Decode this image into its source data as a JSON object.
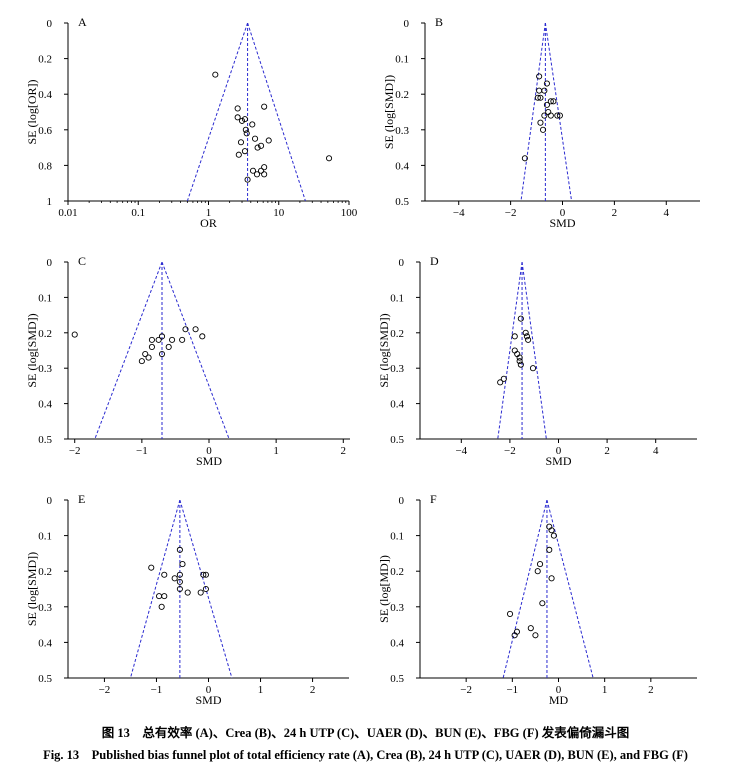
{
  "caption": {
    "cn": "图 13　总有效率 (A)、Crea (B)、24 h UTP (C)、UAER (D)、BUN (E)、FBG (F) 发表偏倚漏斗图",
    "en": "Fig. 13　Published bias funnel plot of total efficiency rate (A), Crea (B), 24 h UTP (C), UAER (D), BUN (E), and FBG (F)"
  },
  "colors": {
    "funnel": "#2a2ad0",
    "axis": "#000000",
    "points": "#000000"
  },
  "chart_data": [
    {
      "panel": "A",
      "type": "scatter",
      "xscale": "log",
      "xlabel": "OR",
      "ylabel": "SE (log[OR])",
      "xlim": [
        0.01,
        100
      ],
      "ylim": [
        0,
        1
      ],
      "y_inverted": true,
      "xticks": [
        0.01,
        0.1,
        1,
        10,
        100
      ],
      "xtick_labels": [
        "0.01",
        "0.1",
        "1",
        "10",
        "100"
      ],
      "yticks": [
        0,
        0.2,
        0.4,
        0.6,
        0.8,
        1
      ],
      "ytick_labels": [
        "0",
        "0.2",
        "0.4",
        "0.6",
        "0.8",
        "1"
      ],
      "pooled": 3.6,
      "funnel": {
        "apex": [
          3.6,
          0
        ],
        "base_left": [
          0.5,
          1
        ],
        "base_right": [
          24,
          1
        ]
      },
      "points": [
        [
          1.25,
          0.29
        ],
        [
          2.6,
          0.48
        ],
        [
          2.6,
          0.53
        ],
        [
          3.0,
          0.55
        ],
        [
          3.3,
          0.54
        ],
        [
          3.4,
          0.6
        ],
        [
          3.5,
          0.62
        ],
        [
          4.2,
          0.57
        ],
        [
          6.2,
          0.47
        ],
        [
          2.9,
          0.67
        ],
        [
          2.7,
          0.74
        ],
        [
          3.3,
          0.72
        ],
        [
          4.6,
          0.65
        ],
        [
          5.0,
          0.7
        ],
        [
          5.6,
          0.69
        ],
        [
          7.2,
          0.66
        ],
        [
          4.3,
          0.83
        ],
        [
          4.9,
          0.85
        ],
        [
          5.6,
          0.83
        ],
        [
          6.2,
          0.81
        ],
        [
          6.2,
          0.85
        ],
        [
          3.6,
          0.88
        ],
        [
          52,
          0.76
        ]
      ]
    },
    {
      "panel": "B",
      "type": "scatter",
      "xlabel": "SMD",
      "ylabel": "SE (log[SMD])",
      "xlim": [
        -5.3,
        5.3
      ],
      "ylim": [
        0,
        0.5
      ],
      "y_inverted": true,
      "xticks": [
        -4,
        -2,
        0,
        2,
        4
      ],
      "xtick_labels": [
        "−4",
        "−2",
        "0",
        "2",
        "4"
      ],
      "yticks": [
        0,
        0.1,
        0.2,
        0.3,
        0.4,
        0.5
      ],
      "ytick_labels": [
        "0",
        "0.1",
        "0.2",
        "0.3",
        "0.4",
        "0.5"
      ],
      "pooled": -0.66,
      "funnel": {
        "apex": [
          -0.66,
          0
        ],
        "base_left": [
          -1.6,
          0.5
        ],
        "base_right": [
          0.35,
          0.5
        ]
      },
      "points": [
        [
          -0.9,
          0.15
        ],
        [
          -0.9,
          0.19
        ],
        [
          -0.85,
          0.21
        ],
        [
          -0.95,
          0.21
        ],
        [
          -0.7,
          0.19
        ],
        [
          -0.6,
          0.17
        ],
        [
          -0.6,
          0.23
        ],
        [
          -0.45,
          0.22
        ],
        [
          -0.35,
          0.22
        ],
        [
          -0.55,
          0.25
        ],
        [
          -0.7,
          0.26
        ],
        [
          -0.45,
          0.26
        ],
        [
          -0.85,
          0.28
        ],
        [
          -0.75,
          0.3
        ],
        [
          -0.2,
          0.26
        ],
        [
          -0.1,
          0.26
        ],
        [
          -1.45,
          0.38
        ]
      ]
    },
    {
      "panel": "C",
      "type": "scatter",
      "xlabel": "SMD",
      "ylabel": "SE (log[SMD])",
      "xlim": [
        -2.1,
        2.1
      ],
      "ylim": [
        0,
        0.5
      ],
      "y_inverted": true,
      "xticks": [
        -2,
        -1,
        0,
        1,
        2
      ],
      "xtick_labels": [
        "−2",
        "−1",
        "0",
        "1",
        "2"
      ],
      "yticks": [
        0,
        0.1,
        0.2,
        0.3,
        0.4,
        0.5
      ],
      "ytick_labels": [
        "0",
        "0.1",
        "0.2",
        "0.3",
        "0.4",
        "0.5"
      ],
      "pooled": -0.7,
      "funnel": {
        "apex": [
          -0.7,
          0
        ],
        "base_left": [
          -1.7,
          0.5
        ],
        "base_right": [
          0.3,
          0.5
        ]
      },
      "points": [
        [
          -2.0,
          0.205
        ],
        [
          -0.85,
          0.22
        ],
        [
          -0.75,
          0.22
        ],
        [
          -0.7,
          0.21
        ],
        [
          -0.55,
          0.22
        ],
        [
          -0.35,
          0.19
        ],
        [
          -0.2,
          0.19
        ],
        [
          -0.1,
          0.21
        ],
        [
          -0.4,
          0.22
        ],
        [
          -0.9,
          0.27
        ],
        [
          -0.95,
          0.26
        ],
        [
          -1.0,
          0.28
        ],
        [
          -0.85,
          0.24
        ],
        [
          -0.6,
          0.24
        ],
        [
          -0.7,
          0.26
        ]
      ]
    },
    {
      "panel": "D",
      "type": "scatter",
      "xlabel": "SMD",
      "ylabel": "SE (log[SMD])",
      "xlim": [
        -5.7,
        5.7
      ],
      "ylim": [
        0,
        0.5
      ],
      "y_inverted": true,
      "xticks": [
        -4,
        -2,
        0,
        2,
        4
      ],
      "xtick_labels": [
        "−4",
        "−2",
        "0",
        "2",
        "4"
      ],
      "yticks": [
        0,
        0.1,
        0.2,
        0.3,
        0.4,
        0.5
      ],
      "ytick_labels": [
        "0",
        "0.1",
        "0.2",
        "0.3",
        "0.4",
        "0.5"
      ],
      "pooled": -1.5,
      "funnel": {
        "apex": [
          -1.5,
          0
        ],
        "base_left": [
          -2.5,
          0.5
        ],
        "base_right": [
          -0.5,
          0.5
        ]
      },
      "points": [
        [
          -1.55,
          0.16
        ],
        [
          -1.35,
          0.2
        ],
        [
          -1.3,
          0.21
        ],
        [
          -1.25,
          0.22
        ],
        [
          -1.8,
          0.21
        ],
        [
          -1.8,
          0.25
        ],
        [
          -1.7,
          0.26
        ],
        [
          -1.6,
          0.27
        ],
        [
          -1.6,
          0.28
        ],
        [
          -1.55,
          0.29
        ],
        [
          -1.05,
          0.3
        ],
        [
          -2.25,
          0.33
        ],
        [
          -2.4,
          0.34
        ]
      ]
    },
    {
      "panel": "E",
      "type": "scatter",
      "xlabel": "SMD",
      "ylabel": "SE (log[SMD])",
      "xlim": [
        -2.7,
        2.7
      ],
      "ylim": [
        0,
        0.5
      ],
      "y_inverted": true,
      "xticks": [
        -2,
        -1,
        0,
        1,
        2
      ],
      "xtick_labels": [
        "−2",
        "−1",
        "0",
        "1",
        "2"
      ],
      "yticks": [
        0,
        0.1,
        0.2,
        0.3,
        0.4,
        0.5
      ],
      "ytick_labels": [
        "0",
        "0.1",
        "0.2",
        "0.3",
        "0.4",
        "0.5"
      ],
      "pooled": -0.55,
      "funnel": {
        "apex": [
          -0.55,
          0
        ],
        "base_left": [
          -1.5,
          0.5
        ],
        "base_right": [
          0.45,
          0.5
        ]
      },
      "points": [
        [
          -0.55,
          0.14
        ],
        [
          -0.5,
          0.18
        ],
        [
          -0.55,
          0.21
        ],
        [
          -0.55,
          0.23
        ],
        [
          -0.55,
          0.25
        ],
        [
          -1.1,
          0.19
        ],
        [
          -0.85,
          0.21
        ],
        [
          -0.65,
          0.22
        ],
        [
          -0.1,
          0.21
        ],
        [
          -0.05,
          0.21
        ],
        [
          -0.95,
          0.27
        ],
        [
          -0.85,
          0.27
        ],
        [
          -0.9,
          0.3
        ],
        [
          -0.4,
          0.26
        ],
        [
          -0.15,
          0.26
        ],
        [
          -0.05,
          0.25
        ]
      ]
    },
    {
      "panel": "F",
      "type": "scatter",
      "xlabel": "MD",
      "ylabel": "SE (log[MD])",
      "xlim": [
        -3,
        3
      ],
      "ylim": [
        0,
        0.5
      ],
      "y_inverted": true,
      "xticks": [
        -2,
        -1,
        0,
        1,
        2
      ],
      "xtick_labels": [
        "−2",
        "−1",
        "0",
        "1",
        "2"
      ],
      "yticks": [
        0,
        0.1,
        0.2,
        0.3,
        0.4,
        0.5
      ],
      "ytick_labels": [
        "0",
        "0.1",
        "0.2",
        "0.3",
        "0.4",
        "0.5"
      ],
      "pooled": -0.25,
      "funnel": {
        "apex": [
          -0.25,
          0
        ],
        "base_left": [
          -1.2,
          0.5
        ],
        "base_right": [
          0.75,
          0.5
        ]
      },
      "points": [
        [
          -0.2,
          0.075
        ],
        [
          -0.15,
          0.085
        ],
        [
          -0.1,
          0.1
        ],
        [
          -0.2,
          0.14
        ],
        [
          -0.4,
          0.18
        ],
        [
          -0.45,
          0.2
        ],
        [
          -0.15,
          0.22
        ],
        [
          -0.35,
          0.29
        ],
        [
          -1.05,
          0.32
        ],
        [
          -0.9,
          0.37
        ],
        [
          -0.95,
          0.38
        ],
        [
          -0.6,
          0.36
        ],
        [
          -0.5,
          0.38
        ]
      ]
    }
  ]
}
